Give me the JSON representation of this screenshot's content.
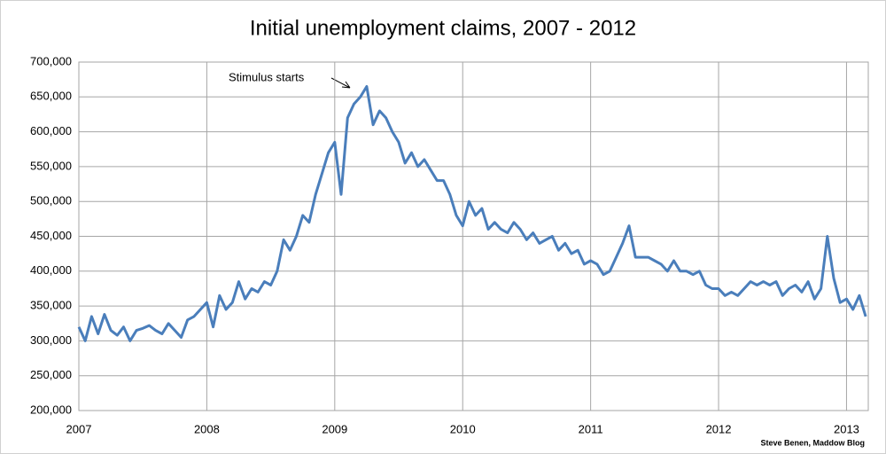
{
  "chart_data": {
    "type": "line",
    "title": "Initial unemployment claims, 2007 - 2012",
    "annotation": "Stimulus starts",
    "source": "Steve Benen, Maddow Blog",
    "xlim": [
      2007,
      2013.17
    ],
    "xticks": [
      2007,
      2008,
      2009,
      2010,
      2011,
      2012,
      2013
    ],
    "ylim": [
      200000,
      700000
    ],
    "yticks": [
      {
        "value": 200000,
        "label": "200,000"
      },
      {
        "value": 250000,
        "label": "250,000"
      },
      {
        "value": 300000,
        "label": "300,000"
      },
      {
        "value": 350000,
        "label": "350,000"
      },
      {
        "value": 400000,
        "label": "400,000"
      },
      {
        "value": 450000,
        "label": "450,000"
      },
      {
        "value": 500000,
        "label": "500,000"
      },
      {
        "value": 550000,
        "label": "550,000"
      },
      {
        "value": 600000,
        "label": "600,000"
      },
      {
        "value": 650000,
        "label": "650,000"
      },
      {
        "value": 700000,
        "label": "700,000"
      }
    ],
    "grid": true,
    "series": [
      {
        "color": "#4a7ebb",
        "x": [
          2007,
          2007.05,
          2007.1,
          2007.15,
          2007.2,
          2007.25,
          2007.3,
          2007.35,
          2007.4,
          2007.45,
          2007.5,
          2007.55,
          2007.6,
          2007.65,
          2007.7,
          2007.75,
          2007.8,
          2007.85,
          2007.9,
          2007.95,
          2008,
          2008.05,
          2008.1,
          2008.15,
          2008.2,
          2008.25,
          2008.3,
          2008.35,
          2008.4,
          2008.45,
          2008.5,
          2008.55,
          2008.6,
          2008.65,
          2008.7,
          2008.75,
          2008.8,
          2008.85,
          2008.9,
          2008.95,
          2009,
          2009.05,
          2009.1,
          2009.15,
          2009.2,
          2009.25,
          2009.3,
          2009.35,
          2009.4,
          2009.45,
          2009.5,
          2009.55,
          2009.6,
          2009.65,
          2009.7,
          2009.75,
          2009.8,
          2009.85,
          2009.9,
          2009.95,
          2010,
          2010.05,
          2010.1,
          2010.15,
          2010.2,
          2010.25,
          2010.3,
          2010.35,
          2010.4,
          2010.45,
          2010.5,
          2010.55,
          2010.6,
          2010.65,
          2010.7,
          2010.75,
          2010.8,
          2010.85,
          2010.9,
          2010.95,
          2011,
          2011.05,
          2011.1,
          2011.15,
          2011.2,
          2011.25,
          2011.3,
          2011.35,
          2011.4,
          2011.45,
          2011.5,
          2011.55,
          2011.6,
          2011.65,
          2011.7,
          2011.75,
          2011.8,
          2011.85,
          2011.9,
          2011.95,
          2012,
          2012.05,
          2012.1,
          2012.15,
          2012.2,
          2012.25,
          2012.3,
          2012.35,
          2012.4,
          2012.45,
          2012.5,
          2012.55,
          2012.6,
          2012.65,
          2012.7,
          2012.75,
          2012.8,
          2012.85,
          2012.9,
          2012.95,
          2013,
          2013.05,
          2013.1,
          2013.15
        ],
        "values": [
          320000,
          300000,
          335000,
          310000,
          338000,
          315000,
          308000,
          320000,
          300000,
          315000,
          318000,
          322000,
          315000,
          310000,
          325000,
          315000,
          305000,
          330000,
          335000,
          345000,
          355000,
          320000,
          365000,
          345000,
          355000,
          385000,
          360000,
          375000,
          370000,
          385000,
          380000,
          400000,
          445000,
          430000,
          450000,
          480000,
          470000,
          510000,
          540000,
          570000,
          585000,
          510000,
          620000,
          640000,
          650000,
          665000,
          610000,
          630000,
          620000,
          600000,
          585000,
          555000,
          570000,
          550000,
          560000,
          545000,
          530000,
          530000,
          510000,
          480000,
          465000,
          500000,
          480000,
          490000,
          460000,
          470000,
          460000,
          455000,
          470000,
          460000,
          445000,
          455000,
          440000,
          445000,
          450000,
          430000,
          440000,
          425000,
          430000,
          410000,
          415000,
          410000,
          395000,
          400000,
          420000,
          440000,
          465000,
          420000,
          420000,
          420000,
          415000,
          410000,
          400000,
          415000,
          400000,
          400000,
          395000,
          400000,
          380000,
          375000,
          375000,
          365000,
          370000,
          365000,
          375000,
          385000,
          380000,
          385000,
          380000,
          385000,
          365000,
          375000,
          380000,
          370000,
          385000,
          360000,
          375000,
          450000,
          390000,
          355000,
          360000,
          345000,
          365000,
          335000
        ]
      }
    ]
  }
}
